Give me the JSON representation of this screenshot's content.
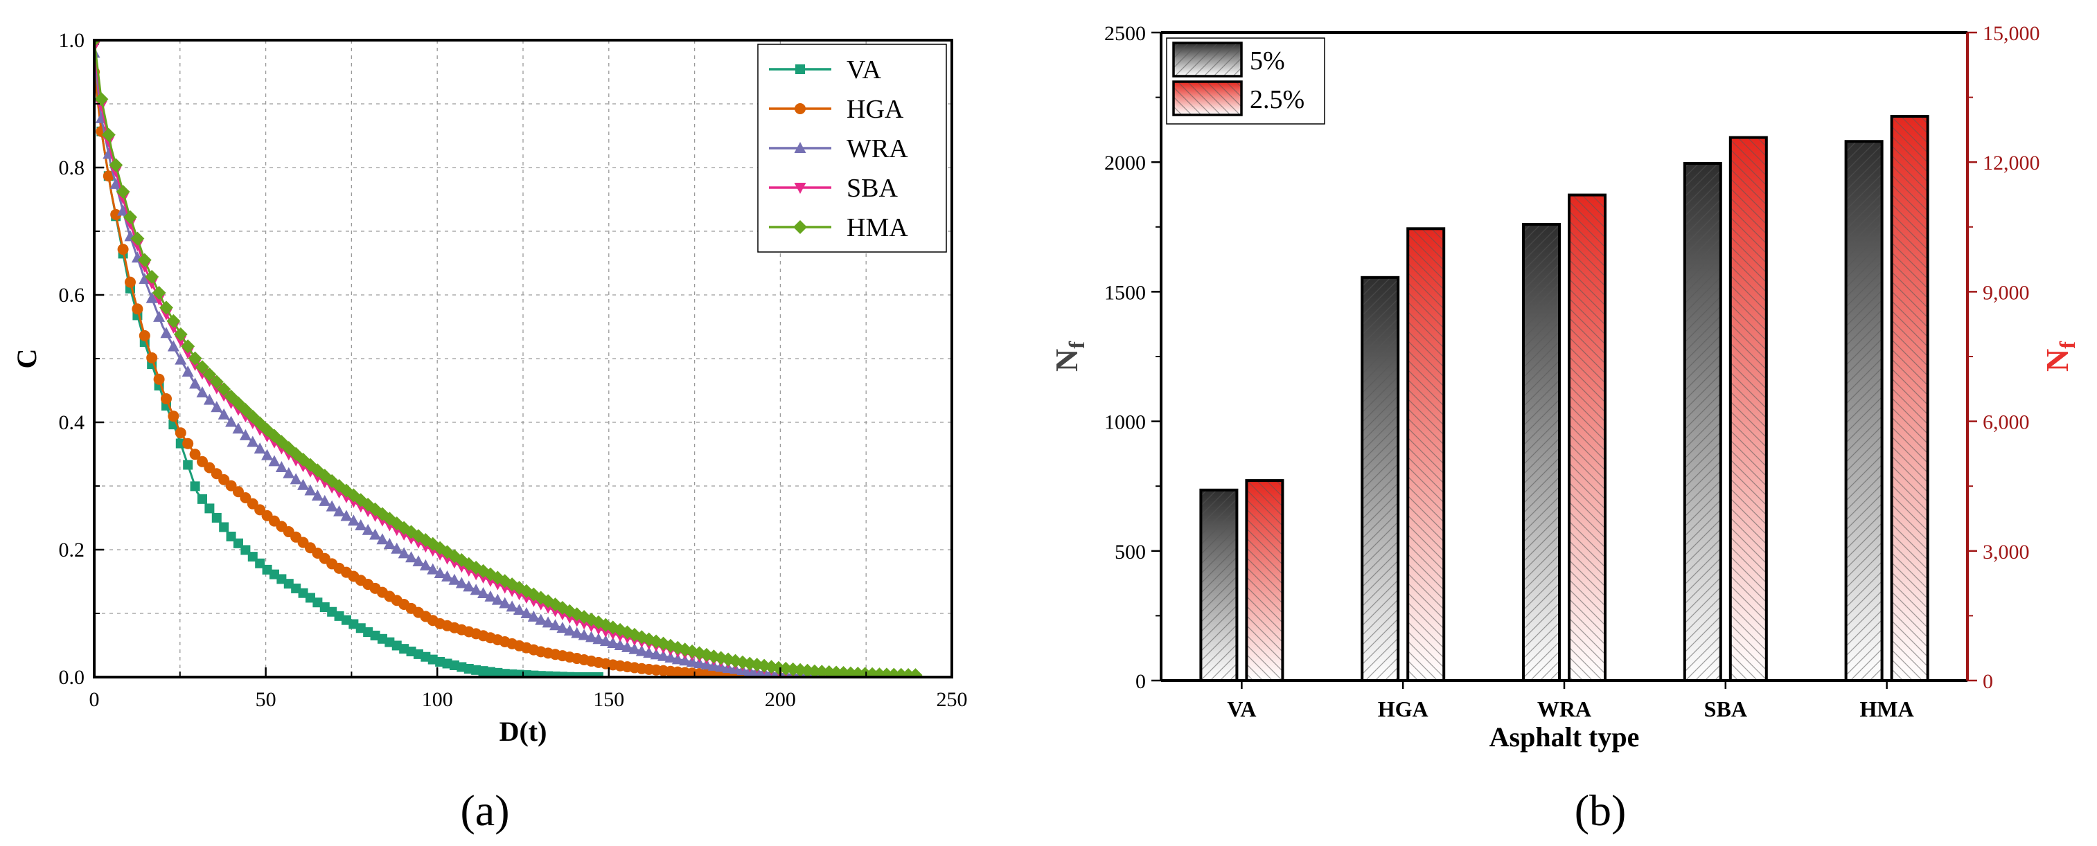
{
  "chart_data": [
    {
      "type": "line",
      "panel": "(a)",
      "xlabel": "D(t)",
      "ylabel": "C",
      "xlim": [
        0,
        250
      ],
      "ylim": [
        0,
        1.0
      ],
      "x_ticks": [
        "0",
        "50",
        "100",
        "150",
        "200",
        "250"
      ],
      "y_ticks": [
        "0.0",
        "0.2",
        "0.4",
        "0.6",
        "0.8",
        "1.0"
      ],
      "grid": true,
      "legend_position": "top-right",
      "series": [
        {
          "name": "VA",
          "color": "#1a9e77",
          "marker": "square",
          "x": [
            0,
            2,
            5,
            10,
            15,
            20,
            25,
            30,
            40,
            50,
            60,
            70,
            80,
            90,
            100,
            110,
            120,
            130,
            140,
            148
          ],
          "y": [
            1.0,
            0.86,
            0.76,
            0.62,
            0.52,
            0.44,
            0.37,
            0.29,
            0.22,
            0.17,
            0.135,
            0.1,
            0.07,
            0.045,
            0.025,
            0.012,
            0.005,
            0.002,
            0.0,
            0.0
          ]
        },
        {
          "name": "HGA",
          "color": "#d95f02",
          "marker": "circle",
          "x": [
            0,
            2,
            5,
            10,
            15,
            20,
            25,
            30,
            40,
            50,
            60,
            70,
            80,
            90,
            100,
            110,
            120,
            130,
            140,
            150,
            160,
            170,
            180,
            190,
            200
          ],
          "y": [
            0.95,
            0.86,
            0.76,
            0.63,
            0.53,
            0.45,
            0.385,
            0.345,
            0.3,
            0.255,
            0.215,
            0.175,
            0.145,
            0.115,
            0.085,
            0.07,
            0.055,
            0.04,
            0.03,
            0.02,
            0.013,
            0.008,
            0.004,
            0.002,
            0.0
          ]
        },
        {
          "name": "WRA",
          "color": "#7570b3",
          "marker": "triangle",
          "x": [
            0,
            2,
            5,
            10,
            15,
            20,
            25,
            30,
            40,
            50,
            60,
            70,
            80,
            90,
            100,
            110,
            120,
            130,
            140,
            150,
            160,
            170,
            180,
            190,
            200,
            210,
            220,
            230
          ],
          "y": [
            0.98,
            0.88,
            0.8,
            0.7,
            0.62,
            0.55,
            0.5,
            0.455,
            0.4,
            0.35,
            0.305,
            0.265,
            0.23,
            0.195,
            0.165,
            0.14,
            0.115,
            0.09,
            0.07,
            0.055,
            0.04,
            0.028,
            0.018,
            0.01,
            0.005,
            0.002,
            0.001,
            0.0
          ]
        },
        {
          "name": "SBA",
          "color": "#e7298a",
          "marker": "triangle-down",
          "x": [
            0,
            2,
            5,
            10,
            15,
            20,
            25,
            30,
            40,
            50,
            60,
            70,
            80,
            90,
            100,
            110,
            120,
            130,
            140,
            150,
            160,
            170,
            180,
            190,
            200,
            210,
            220,
            230,
            237
          ],
          "y": [
            0.99,
            0.9,
            0.82,
            0.72,
            0.64,
            0.58,
            0.53,
            0.485,
            0.43,
            0.38,
            0.335,
            0.295,
            0.26,
            0.225,
            0.195,
            0.165,
            0.14,
            0.115,
            0.09,
            0.07,
            0.055,
            0.04,
            0.028,
            0.018,
            0.01,
            0.005,
            0.002,
            0.001,
            0.0
          ]
        },
        {
          "name": "HMA",
          "color": "#66a61e",
          "marker": "diamond",
          "x": [
            0,
            2,
            5,
            10,
            15,
            20,
            25,
            30,
            40,
            50,
            60,
            70,
            80,
            90,
            100,
            110,
            120,
            130,
            140,
            150,
            160,
            170,
            180,
            190,
            200,
            210,
            220,
            230,
            240
          ],
          "y": [
            1.0,
            0.91,
            0.83,
            0.73,
            0.65,
            0.59,
            0.54,
            0.495,
            0.44,
            0.39,
            0.345,
            0.305,
            0.27,
            0.235,
            0.205,
            0.175,
            0.15,
            0.125,
            0.1,
            0.08,
            0.062,
            0.046,
            0.033,
            0.022,
            0.014,
            0.009,
            0.006,
            0.004,
            0.003
          ]
        }
      ]
    },
    {
      "type": "bar",
      "panel": "(b)",
      "categories": [
        "VA",
        "HGA",
        "WRA",
        "SBA",
        "HMA"
      ],
      "xlabel": "Asphalt type",
      "ylabel_left": "N",
      "ylabel_left_sub": "f",
      "ylabel_right": "N",
      "ylabel_right_sub": "f",
      "ylim_left": [
        0,
        2500
      ],
      "ylim_right": [
        0,
        15000
      ],
      "y_ticks_left": [
        "0",
        "500",
        "1000",
        "1500",
        "2000",
        "2500"
      ],
      "y_ticks_right": [
        "0",
        "3,000",
        "6,000",
        "9,000",
        "12,000",
        "15,000"
      ],
      "legend_position": "top-left",
      "series": [
        {
          "name": "5%",
          "axis": "left",
          "color": "#3a3a3a",
          "values": [
            735,
            1555,
            1760,
            1995,
            2080
          ]
        },
        {
          "name": "2.5%",
          "axis": "right",
          "color": "#e8302c",
          "values": [
            4630,
            10460,
            11240,
            12570,
            13060
          ]
        }
      ],
      "right_axis_color": "#a01616"
    }
  ]
}
